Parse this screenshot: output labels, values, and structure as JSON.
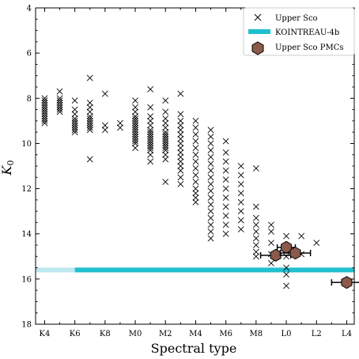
{
  "chart_data": {
    "type": "scatter",
    "xlabel": "Spectral type",
    "ylabel": "K",
    "ylabel_sub": "0",
    "xlim": [
      -0.6,
      20.5
    ],
    "ylim": [
      18,
      4
    ],
    "y_inverted": true,
    "x_ticks": [
      {
        "pos": 0,
        "label": "K4"
      },
      {
        "pos": 2,
        "label": "K6"
      },
      {
        "pos": 4,
        "label": "K8"
      },
      {
        "pos": 6,
        "label": "M0"
      },
      {
        "pos": 8,
        "label": "M2"
      },
      {
        "pos": 10,
        "label": "M4"
      },
      {
        "pos": 12,
        "label": "M6"
      },
      {
        "pos": 14,
        "label": "M8"
      },
      {
        "pos": 16,
        "label": "L0"
      },
      {
        "pos": 18,
        "label": "L2"
      },
      {
        "pos": 20,
        "label": "L4"
      }
    ],
    "y_ticks": [
      4,
      6,
      8,
      10,
      12,
      14,
      16,
      18
    ],
    "legend": {
      "position": "top-right",
      "entries": [
        {
          "label": "Upper Sco",
          "marker": "x"
        },
        {
          "label": "KOINTREAU-4b",
          "marker": "band"
        },
        {
          "label": "Upper Sco PMCs",
          "marker": "hexagon"
        }
      ]
    },
    "series": [
      {
        "name": "Upper Sco",
        "marker": "x",
        "color": "#000000",
        "groups": [
          {
            "x": 0,
            "k": [
              8.0,
              8.1,
              8.2,
              8.3,
              8.4,
              8.5,
              8.6,
              8.7,
              8.8,
              8.9,
              9.0,
              9.1
            ]
          },
          {
            "x": 1,
            "k": [
              7.7,
              8.0,
              8.1,
              8.2,
              8.3,
              8.4,
              8.5,
              8.6
            ]
          },
          {
            "x": 2,
            "k": [
              8.1,
              8.5,
              8.7,
              8.9,
              9.0,
              9.1,
              9.2,
              9.3,
              9.4,
              9.5
            ]
          },
          {
            "x": 3,
            "k": [
              7.1,
              8.2,
              8.4,
              8.6,
              8.8,
              8.9,
              9.0,
              9.1,
              9.2,
              9.3,
              9.4,
              10.7
            ]
          },
          {
            "x": 4,
            "k": [
              7.8,
              9.2,
              9.4
            ]
          },
          {
            "x": 5,
            "k": [
              9.1,
              9.3
            ]
          },
          {
            "x": 6,
            "k": [
              8.1,
              8.4,
              8.6,
              8.8,
              8.9,
              9.0,
              9.1,
              9.2,
              9.3,
              9.4,
              9.5,
              9.6,
              9.7,
              9.8,
              9.9,
              10.0,
              10.2
            ]
          },
          {
            "x": 7,
            "k": [
              7.6,
              8.4,
              8.8,
              9.0,
              9.2,
              9.4,
              9.5,
              9.6,
              9.7,
              9.8,
              9.9,
              10.0,
              10.1,
              10.2,
              10.3,
              10.5,
              10.8
            ]
          },
          {
            "x": 8,
            "k": [
              8.1,
              8.6,
              8.9,
              9.1,
              9.3,
              9.5,
              9.6,
              9.7,
              9.8,
              9.9,
              10.0,
              10.1,
              10.2,
              10.3,
              10.5,
              10.7,
              11.7
            ]
          },
          {
            "x": 9,
            "k": [
              7.8,
              8.7,
              9.0,
              9.2,
              9.4,
              9.6,
              9.8,
              10.0,
              10.2,
              10.4,
              10.6,
              10.8,
              11.0,
              11.2,
              11.5,
              11.8
            ]
          },
          {
            "x": 10,
            "k": [
              9.0,
              9.3,
              9.6,
              9.9,
              10.2,
              10.5,
              10.8,
              11.1,
              11.4,
              11.7,
              12.0,
              12.2,
              12.4,
              12.6
            ]
          },
          {
            "x": 11,
            "k": [
              9.4,
              9.7,
              10.0,
              10.3,
              10.6,
              10.9,
              11.2,
              11.5,
              11.8,
              12.1,
              12.4,
              12.7,
              13.0,
              13.3,
              13.6,
              13.9,
              14.2
            ]
          },
          {
            "x": 12,
            "k": [
              9.9,
              10.4,
              10.8,
              11.2,
              11.6,
              12.0,
              12.4,
              12.8,
              13.2,
              13.6,
              14.0
            ]
          },
          {
            "x": 13,
            "k": [
              11.0,
              11.4,
              11.8,
              12.2,
              12.6,
              13.0,
              13.4,
              13.8
            ]
          },
          {
            "x": 14,
            "k": [
              11.1,
              12.8,
              13.3,
              13.6,
              13.9,
              14.2,
              14.5,
              14.8,
              15.0
            ]
          },
          {
            "x": 15,
            "k": [
              13.6,
              13.9,
              14.4,
              14.9,
              15.3
            ]
          },
          {
            "x": 16,
            "k": [
              14.1,
              14.7,
              15.0,
              15.5,
              15.8,
              16.3
            ]
          },
          {
            "x": 17,
            "k": [
              14.1,
              14.9
            ]
          },
          {
            "x": 18,
            "k": [
              14.4
            ]
          }
        ]
      },
      {
        "name": "KOINTREAU-4b",
        "marker": "band",
        "color": "#1fbfcf",
        "light_color": "#bde8ee",
        "k": 15.6,
        "x_from": -0.6,
        "x_solid_from": 2,
        "x_to": 20.5
      },
      {
        "name": "Upper Sco PMCs",
        "marker": "hexagon",
        "color": "#8b5a4a",
        "points": [
          {
            "x": 15.3,
            "k": 14.95,
            "xerr": 1.0
          },
          {
            "x": 16.0,
            "k": 14.6,
            "xerr": 0.6
          },
          {
            "x": 16.6,
            "k": 14.85,
            "xerr": 1.0
          },
          {
            "x": 20.0,
            "k": 16.15,
            "xerr": 1.0
          }
        ]
      }
    ]
  }
}
